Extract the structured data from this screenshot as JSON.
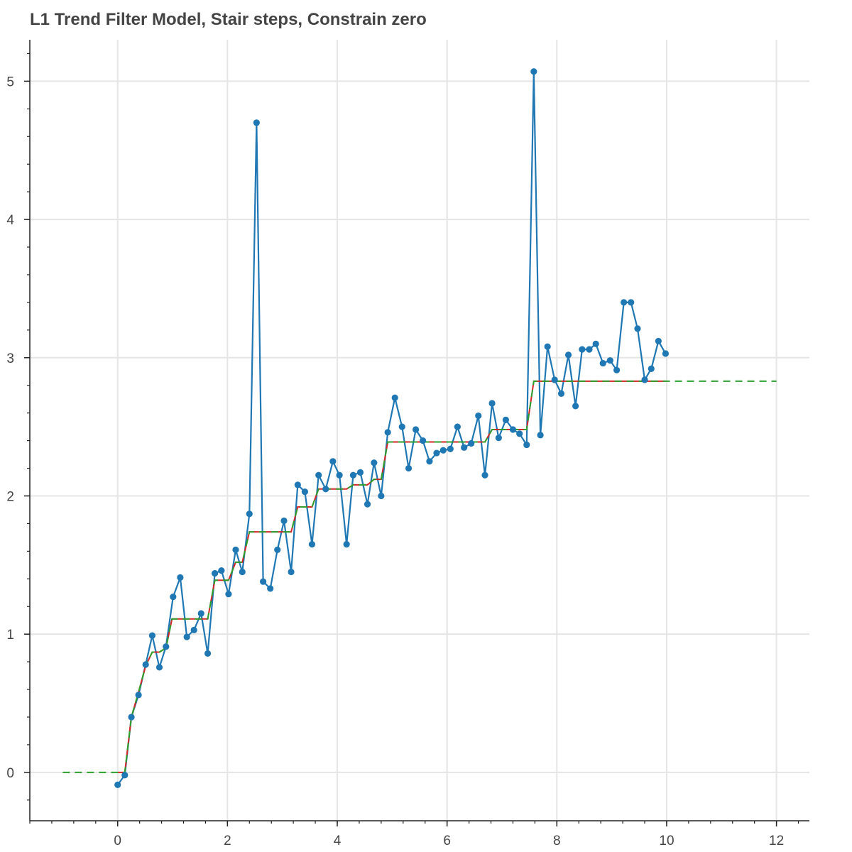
{
  "chart_data": {
    "type": "line",
    "title": "L1 Trend Filter Model, Stair steps, Constrain zero",
    "xlabel": "",
    "ylabel": "",
    "xlim": [
      -1.6,
      12.6
    ],
    "ylim": [
      -0.35,
      5.3
    ],
    "grid": true,
    "x_ticks": [
      0,
      2,
      4,
      6,
      8,
      10,
      12
    ],
    "y_ticks": [
      0,
      1,
      2,
      3,
      4,
      5
    ],
    "x_tick_labels": [
      "0",
      "2",
      "4",
      "6",
      "8",
      "10",
      "12"
    ],
    "y_tick_labels": [
      "0",
      "1",
      "2",
      "3",
      "4",
      "5"
    ],
    "colors": {
      "observed": "#1f77b4",
      "fit": "#d62728",
      "extrapolation": "#2ca02c"
    },
    "series": [
      {
        "kind": "observed",
        "x": [
          0.0,
          0.13,
          0.25,
          0.38,
          0.51,
          0.63,
          0.76,
          0.88,
          1.01,
          1.14,
          1.26,
          1.39,
          1.52,
          1.64,
          1.77,
          1.89,
          2.02,
          2.15,
          2.27,
          2.4,
          2.53,
          2.65,
          2.78,
          2.91,
          3.03,
          3.16,
          3.28,
          3.41,
          3.54,
          3.66,
          3.79,
          3.92,
          4.04,
          4.17,
          4.29,
          4.42,
          4.55,
          4.67,
          4.8,
          4.92,
          5.05,
          5.18,
          5.3,
          5.43,
          5.56,
          5.68,
          5.81,
          5.93,
          6.06,
          6.19,
          6.31,
          6.44,
          6.57,
          6.69,
          6.82,
          6.94,
          7.07,
          7.2,
          7.32,
          7.45,
          7.58,
          7.7,
          7.83,
          7.96,
          8.08,
          8.21,
          8.34,
          8.46,
          8.59,
          8.71,
          8.84,
          8.97,
          9.09,
          9.22,
          9.35,
          9.47,
          9.6,
          9.72,
          9.85,
          9.98
        ],
        "y": [
          -0.09,
          -0.02,
          0.4,
          0.56,
          0.78,
          0.99,
          0.76,
          0.91,
          1.27,
          1.41,
          0.98,
          1.03,
          1.15,
          0.86,
          1.44,
          1.46,
          1.29,
          1.61,
          1.45,
          1.87,
          4.7,
          1.38,
          1.33,
          1.61,
          1.82,
          1.45,
          2.08,
          2.03,
          1.65,
          2.15,
          2.05,
          2.25,
          2.15,
          1.65,
          2.15,
          2.17,
          1.94,
          2.24,
          2.0,
          2.46,
          2.71,
          2.5,
          2.2,
          2.48,
          2.4,
          2.25,
          2.31,
          2.33,
          2.34,
          2.5,
          2.35,
          2.38,
          2.58,
          2.15,
          2.67,
          2.42,
          2.55,
          2.48,
          2.45,
          2.37,
          5.07,
          2.44,
          3.08,
          2.84,
          2.74,
          3.02,
          2.65,
          3.06,
          3.06,
          3.1,
          2.96,
          2.98,
          2.91,
          3.4,
          3.4,
          3.21,
          2.84,
          2.92,
          3.12,
          3.03
        ]
      },
      {
        "kind": "fit",
        "x": [
          0.0,
          0.13,
          0.25,
          0.38,
          0.51,
          0.63,
          0.76,
          0.88,
          0.99,
          1.01,
          1.14,
          1.26,
          1.39,
          1.52,
          1.64,
          1.77,
          1.89,
          2.02,
          2.15,
          2.27,
          2.4,
          2.53,
          2.65,
          2.78,
          2.91,
          3.03,
          3.16,
          3.28,
          3.41,
          3.54,
          3.66,
          3.79,
          3.92,
          4.04,
          4.17,
          4.29,
          4.42,
          4.55,
          4.67,
          4.8,
          4.92,
          5.05,
          5.18,
          5.3,
          5.43,
          5.56,
          5.68,
          5.81,
          5.93,
          6.06,
          6.19,
          6.31,
          6.44,
          6.57,
          6.69,
          6.82,
          6.94,
          7.07,
          7.2,
          7.32,
          7.45,
          7.58,
          7.7,
          7.83,
          7.96,
          8.08,
          8.21,
          8.34,
          8.46,
          8.59,
          8.71,
          8.84,
          8.97,
          9.09,
          9.22,
          9.35,
          9.47,
          9.6,
          9.72,
          9.85,
          9.98
        ],
        "y": [
          0.0,
          0.0,
          0.4,
          0.58,
          0.77,
          0.87,
          0.87,
          0.9,
          1.11,
          1.11,
          1.11,
          1.11,
          1.11,
          1.11,
          1.11,
          1.39,
          1.39,
          1.39,
          1.52,
          1.52,
          1.74,
          1.74,
          1.74,
          1.74,
          1.74,
          1.74,
          1.74,
          1.92,
          1.92,
          1.92,
          2.05,
          2.05,
          2.05,
          2.05,
          2.05,
          2.08,
          2.08,
          2.08,
          2.12,
          2.12,
          2.39,
          2.39,
          2.39,
          2.39,
          2.39,
          2.39,
          2.39,
          2.39,
          2.39,
          2.39,
          2.39,
          2.39,
          2.39,
          2.39,
          2.39,
          2.48,
          2.48,
          2.48,
          2.48,
          2.48,
          2.48,
          2.83,
          2.83,
          2.83,
          2.83,
          2.83,
          2.83,
          2.83,
          2.83,
          2.83,
          2.83,
          2.83,
          2.83,
          2.83,
          2.83,
          2.83,
          2.83,
          2.83,
          2.83,
          2.83,
          2.83
        ]
      },
      {
        "kind": "extrapolation",
        "x": [
          -1.0,
          0.13,
          0.25,
          0.38,
          0.51,
          0.63,
          0.76,
          0.88,
          0.99,
          1.01,
          1.14,
          1.26,
          1.39,
          1.52,
          1.64,
          1.77,
          1.89,
          2.02,
          2.15,
          2.27,
          2.4,
          2.53,
          2.65,
          2.78,
          2.91,
          3.03,
          3.16,
          3.28,
          3.41,
          3.54,
          3.66,
          3.79,
          3.92,
          4.04,
          4.17,
          4.29,
          4.42,
          4.55,
          4.67,
          4.8,
          4.92,
          5.05,
          5.18,
          5.3,
          5.43,
          5.56,
          5.68,
          5.81,
          5.93,
          6.06,
          6.19,
          6.31,
          6.44,
          6.57,
          6.69,
          6.82,
          6.94,
          7.07,
          7.2,
          7.32,
          7.45,
          7.58,
          7.7,
          7.83,
          7.96,
          8.08,
          8.21,
          8.34,
          8.46,
          8.59,
          8.71,
          8.84,
          8.97,
          9.09,
          9.22,
          9.35,
          9.47,
          9.6,
          9.72,
          9.85,
          9.98,
          12.0
        ],
        "y": [
          0.0,
          0.0,
          0.4,
          0.58,
          0.77,
          0.87,
          0.87,
          0.9,
          1.11,
          1.11,
          1.11,
          1.11,
          1.11,
          1.11,
          1.11,
          1.39,
          1.39,
          1.39,
          1.52,
          1.52,
          1.74,
          1.74,
          1.74,
          1.74,
          1.74,
          1.74,
          1.74,
          1.92,
          1.92,
          1.92,
          2.05,
          2.05,
          2.05,
          2.05,
          2.05,
          2.08,
          2.08,
          2.08,
          2.12,
          2.12,
          2.39,
          2.39,
          2.39,
          2.39,
          2.39,
          2.39,
          2.39,
          2.39,
          2.39,
          2.39,
          2.39,
          2.39,
          2.39,
          2.39,
          2.39,
          2.48,
          2.48,
          2.48,
          2.48,
          2.48,
          2.48,
          2.83,
          2.83,
          2.83,
          2.83,
          2.83,
          2.83,
          2.83,
          2.83,
          2.83,
          2.83,
          2.83,
          2.83,
          2.83,
          2.83,
          2.83,
          2.83,
          2.83,
          2.83,
          2.83,
          2.83,
          2.83
        ]
      }
    ]
  }
}
